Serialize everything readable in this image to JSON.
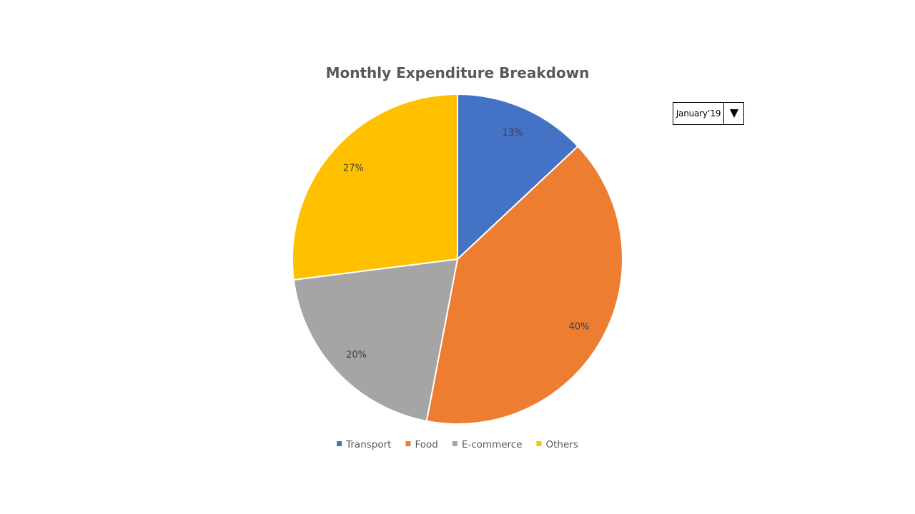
{
  "chart_data": {
    "type": "pie",
    "title": "Monthly Expenditure Breakdown",
    "categories": [
      "Transport",
      "Food",
      "E-commerce",
      "Others"
    ],
    "values": [
      13,
      40,
      20,
      27
    ],
    "labels": [
      "13%",
      "40%",
      "20%",
      "27%"
    ],
    "colors": [
      "#4472C4",
      "#ED7D31",
      "#A5A5A5",
      "#FFC000"
    ],
    "start_angle": "12 o'clock",
    "direction": "clockwise",
    "legend_position": "bottom"
  },
  "month_selector": {
    "selected": "January’19",
    "icon": "triangle-down-icon"
  }
}
